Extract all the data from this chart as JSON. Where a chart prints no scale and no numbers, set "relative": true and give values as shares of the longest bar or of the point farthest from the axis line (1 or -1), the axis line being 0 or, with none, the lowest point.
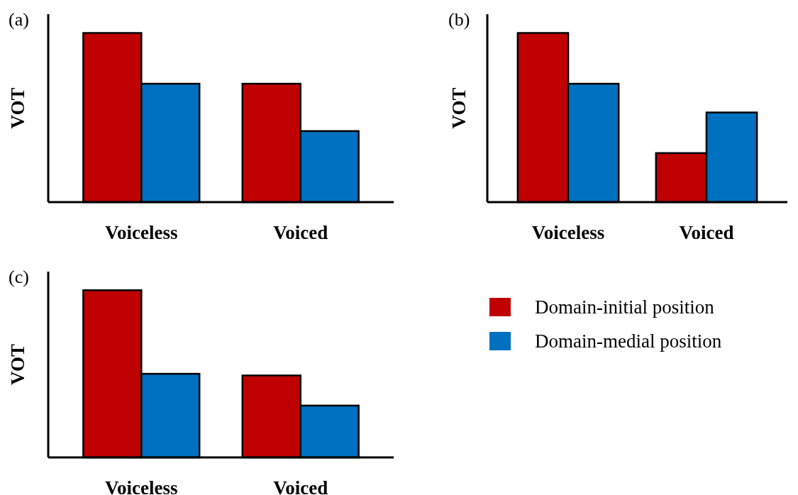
{
  "chart_data": [
    {
      "type": "bar",
      "title": "(a)",
      "ylabel": "VOT",
      "relative": true,
      "categories": [
        "Voiceless",
        "Voiced"
      ],
      "series": [
        {
          "color": "#c00000",
          "values": [
            1,
            0.7
          ]
        },
        {
          "color": "#0070c0",
          "values": [
            0.7,
            0.42
          ]
        }
      ]
    },
    {
      "type": "bar",
      "title": "(b)",
      "ylabel": "VOT",
      "relative": true,
      "categories": [
        "Voiceless",
        "Voiced"
      ],
      "series": [
        {
          "color": "#c00000",
          "values": [
            1,
            0.29
          ]
        },
        {
          "color": "#0070c0",
          "values": [
            0.7,
            0.53
          ]
        }
      ]
    },
    {
      "type": "bar",
      "title": "(c)",
      "ylabel": "VOT",
      "relative": true,
      "legend": "right",
      "categories": [
        "Voiceless",
        "Voiced"
      ],
      "series": [
        {
          "name": "Domain-initial position",
          "color": "#c00000",
          "values": [
            1,
            0.49
          ]
        },
        {
          "name": "Domain-medial position",
          "color": "#0070c0",
          "values": [
            0.5,
            0.31
          ]
        }
      ]
    }
  ]
}
